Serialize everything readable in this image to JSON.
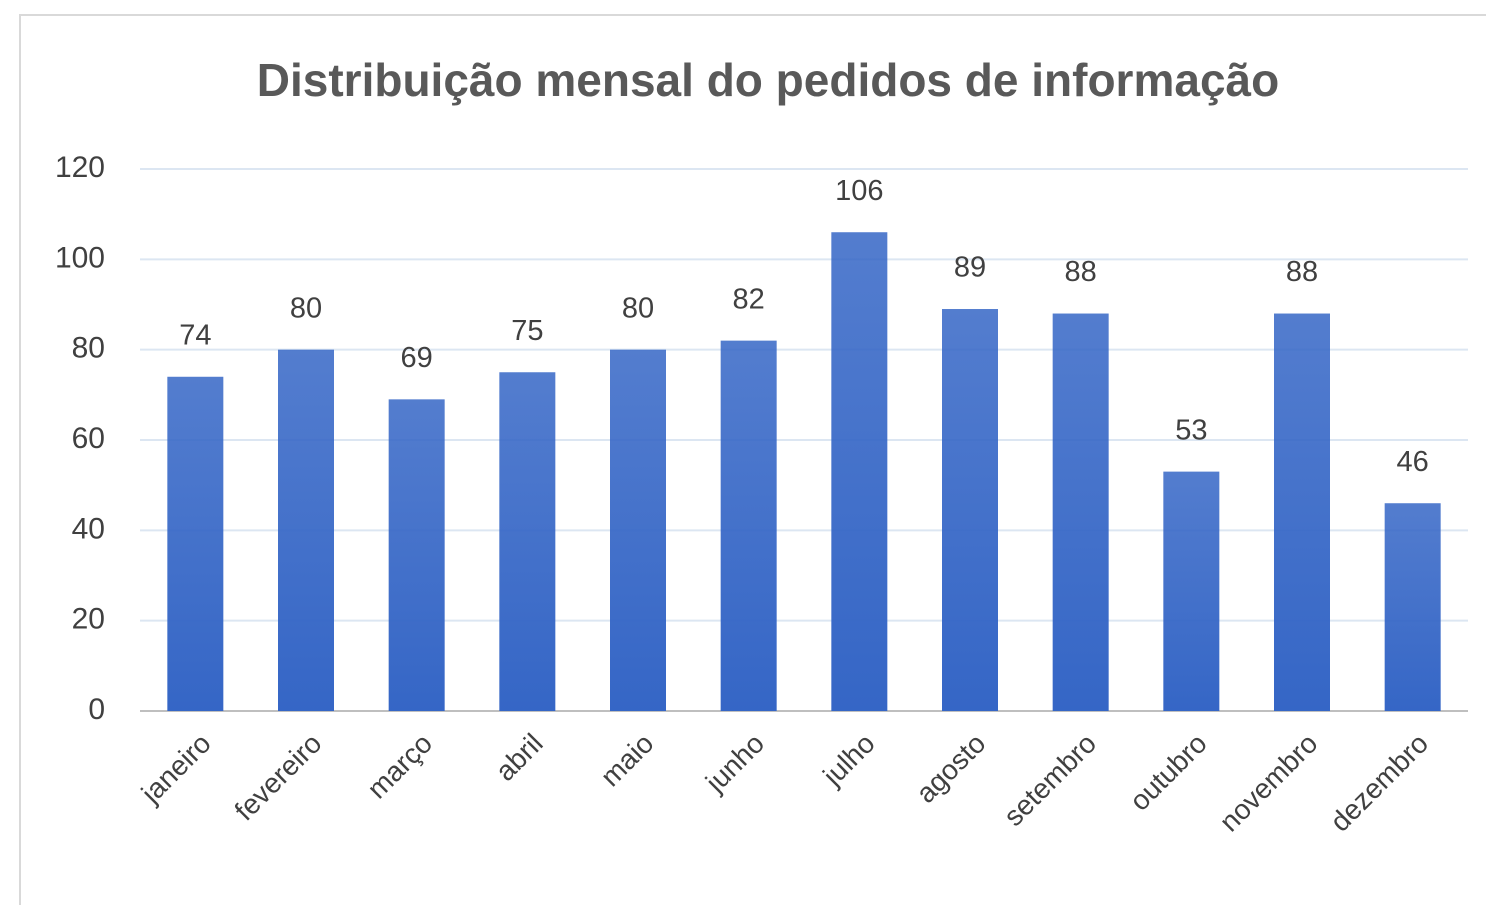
{
  "chart_data": {
    "type": "bar",
    "title": "Distribuição mensal do pedidos de informação",
    "categories": [
      "janeiro",
      "fevereiro",
      "março",
      "abril",
      "maio",
      "junho",
      "julho",
      "agosto",
      "setembro",
      "outubro",
      "novembro",
      "dezembro"
    ],
    "values": [
      74,
      80,
      69,
      75,
      80,
      82,
      106,
      89,
      88,
      53,
      88,
      46
    ],
    "color": "#3566c6",
    "ylim": [
      0,
      120
    ],
    "yticks": [
      0,
      20,
      40,
      60,
      80,
      100,
      120
    ],
    "grid": true
  }
}
